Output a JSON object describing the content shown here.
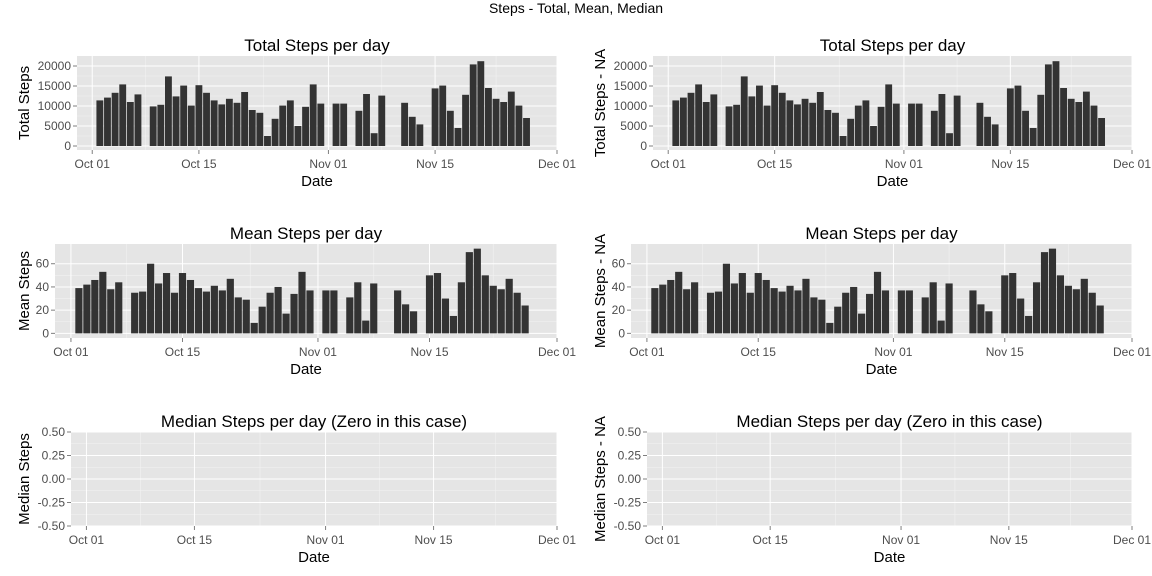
{
  "figure_title": "Steps - Total, Mean, Median",
  "chart_data": [
    {
      "type": "bar",
      "title": "Total Steps per day",
      "xlabel": "Date",
      "ylabel": "Total Steps",
      "ylim": [
        -1000,
        22500
      ],
      "yticks": [
        0,
        5000,
        10000,
        15000,
        20000
      ],
      "ytick_labels": [
        "0",
        "5000",
        "10000",
        "15000",
        "20000"
      ],
      "xlim": [
        "2012-09-29",
        "2012-12-01"
      ],
      "xticks": [
        "2012-10-01",
        "2012-10-15",
        "2012-11-01",
        "2012-11-15",
        "2012-12-01"
      ],
      "xtick_labels": [
        "Oct 01",
        "Oct 15",
        "Nov 01",
        "Nov 15",
        "Dec 01"
      ],
      "grid": true,
      "x": [
        "2012-10-02",
        "2012-10-03",
        "2012-10-04",
        "2012-10-05",
        "2012-10-06",
        "2012-10-07",
        "2012-10-09",
        "2012-10-10",
        "2012-10-11",
        "2012-10-12",
        "2012-10-13",
        "2012-10-14",
        "2012-10-15",
        "2012-10-16",
        "2012-10-17",
        "2012-10-18",
        "2012-10-19",
        "2012-10-20",
        "2012-10-21",
        "2012-10-22",
        "2012-10-23",
        "2012-10-24",
        "2012-10-25",
        "2012-10-26",
        "2012-10-27",
        "2012-10-28",
        "2012-10-29",
        "2012-10-30",
        "2012-10-31",
        "2012-11-02",
        "2012-11-03",
        "2012-11-05",
        "2012-11-06",
        "2012-11-07",
        "2012-11-08",
        "2012-11-11",
        "2012-11-12",
        "2012-11-13",
        "2012-11-15",
        "2012-11-16",
        "2012-11-17",
        "2012-11-18",
        "2012-11-19",
        "2012-11-20",
        "2012-11-21",
        "2012-11-22",
        "2012-11-23",
        "2012-11-24",
        "2012-11-25",
        "2012-11-26",
        "2012-11-27",
        "2012-11-28",
        "2012-11-29"
      ],
      "values": [
        11400,
        12100,
        13300,
        15400,
        11000,
        12900,
        9900,
        10300,
        17400,
        12400,
        15100,
        10100,
        15200,
        13300,
        11400,
        10400,
        11800,
        10800,
        13500,
        9000,
        8300,
        2500,
        6800,
        10100,
        11400,
        5000,
        9800,
        15400,
        10600,
        10600,
        10600,
        8800,
        13000,
        3200,
        12600,
        10800,
        7300,
        5400,
        14400,
        15100,
        8800,
        4500,
        12800,
        20400,
        21200,
        14500,
        11800,
        11000,
        13600,
        10100,
        7000,
        0,
        0
      ]
    },
    {
      "type": "bar",
      "title": "Total Steps per day",
      "xlabel": "Date",
      "ylabel": "Total Steps - NA",
      "ylim": [
        -1000,
        22500
      ],
      "yticks": [
        0,
        5000,
        10000,
        15000,
        20000
      ],
      "ytick_labels": [
        "0",
        "5000",
        "10000",
        "15000",
        "20000"
      ],
      "xlim": [
        "2012-09-29",
        "2012-12-01"
      ],
      "xticks": [
        "2012-10-01",
        "2012-10-15",
        "2012-11-01",
        "2012-11-15",
        "2012-12-01"
      ],
      "xtick_labels": [
        "Oct 01",
        "Oct 15",
        "Nov 01",
        "Nov 15",
        "Dec 01"
      ],
      "grid": true,
      "x": [
        "2012-10-02",
        "2012-10-03",
        "2012-10-04",
        "2012-10-05",
        "2012-10-06",
        "2012-10-07",
        "2012-10-09",
        "2012-10-10",
        "2012-10-11",
        "2012-10-12",
        "2012-10-13",
        "2012-10-14",
        "2012-10-15",
        "2012-10-16",
        "2012-10-17",
        "2012-10-18",
        "2012-10-19",
        "2012-10-20",
        "2012-10-21",
        "2012-10-22",
        "2012-10-23",
        "2012-10-24",
        "2012-10-25",
        "2012-10-26",
        "2012-10-27",
        "2012-10-28",
        "2012-10-29",
        "2012-10-30",
        "2012-10-31",
        "2012-11-02",
        "2012-11-03",
        "2012-11-05",
        "2012-11-06",
        "2012-11-07",
        "2012-11-08",
        "2012-11-11",
        "2012-11-12",
        "2012-11-13",
        "2012-11-15",
        "2012-11-16",
        "2012-11-17",
        "2012-11-18",
        "2012-11-19",
        "2012-11-20",
        "2012-11-21",
        "2012-11-22",
        "2012-11-23",
        "2012-11-24",
        "2012-11-25",
        "2012-11-26",
        "2012-11-27",
        "2012-11-28",
        "2012-11-29"
      ],
      "values": [
        11400,
        12100,
        13300,
        15400,
        11000,
        12900,
        9900,
        10300,
        17400,
        12400,
        15100,
        10100,
        15200,
        13300,
        11400,
        10400,
        11800,
        10800,
        13500,
        9000,
        8300,
        2500,
        6800,
        10100,
        11400,
        5000,
        9800,
        15400,
        10600,
        10600,
        10600,
        8800,
        13000,
        3200,
        12600,
        10800,
        7300,
        5400,
        14400,
        15100,
        8800,
        4500,
        12800,
        20400,
        21200,
        14500,
        11800,
        11000,
        13600,
        10100,
        7000,
        0,
        0
      ]
    },
    {
      "type": "bar",
      "title": "Mean Steps per day",
      "xlabel": "Date",
      "ylabel": "Mean Steps",
      "ylim": [
        -4,
        77
      ],
      "yticks": [
        0,
        20,
        40,
        60
      ],
      "ytick_labels": [
        "0",
        "20",
        "40",
        "60"
      ],
      "xlim": [
        "2012-09-29",
        "2012-12-01"
      ],
      "xticks": [
        "2012-10-01",
        "2012-10-15",
        "2012-11-01",
        "2012-11-15",
        "2012-12-01"
      ],
      "xtick_labels": [
        "Oct 01",
        "Oct 15",
        "Nov 01",
        "Nov 15",
        "Dec 01"
      ],
      "grid": true,
      "x": [
        "2012-10-02",
        "2012-10-03",
        "2012-10-04",
        "2012-10-05",
        "2012-10-06",
        "2012-10-07",
        "2012-10-09",
        "2012-10-10",
        "2012-10-11",
        "2012-10-12",
        "2012-10-13",
        "2012-10-14",
        "2012-10-15",
        "2012-10-16",
        "2012-10-17",
        "2012-10-18",
        "2012-10-19",
        "2012-10-20",
        "2012-10-21",
        "2012-10-22",
        "2012-10-23",
        "2012-10-24",
        "2012-10-25",
        "2012-10-26",
        "2012-10-27",
        "2012-10-28",
        "2012-10-29",
        "2012-10-30",
        "2012-10-31",
        "2012-11-02",
        "2012-11-03",
        "2012-11-05",
        "2012-11-06",
        "2012-11-07",
        "2012-11-08",
        "2012-11-11",
        "2012-11-12",
        "2012-11-13",
        "2012-11-15",
        "2012-11-16",
        "2012-11-17",
        "2012-11-18",
        "2012-11-19",
        "2012-11-20",
        "2012-11-21",
        "2012-11-22",
        "2012-11-23",
        "2012-11-24",
        "2012-11-25",
        "2012-11-26",
        "2012-11-27",
        "2012-11-28",
        "2012-11-29"
      ],
      "values": [
        39,
        42,
        46,
        53,
        38,
        44,
        35,
        36,
        60,
        43,
        52,
        35,
        52,
        46,
        39,
        36,
        41,
        37,
        47,
        31,
        29,
        9,
        23,
        35,
        40,
        17,
        34,
        53,
        37,
        37,
        37,
        31,
        44,
        11,
        43,
        37,
        25,
        19,
        50,
        52,
        30,
        15,
        44,
        70,
        73,
        50,
        41,
        38,
        47,
        35,
        24,
        0,
        0
      ]
    },
    {
      "type": "bar",
      "title": "Mean Steps per day",
      "xlabel": "Date",
      "ylabel": "Mean Steps - NA",
      "ylim": [
        -4,
        77
      ],
      "yticks": [
        0,
        20,
        40,
        60
      ],
      "ytick_labels": [
        "0",
        "20",
        "40",
        "60"
      ],
      "xlim": [
        "2012-09-29",
        "2012-12-01"
      ],
      "xticks": [
        "2012-10-01",
        "2012-10-15",
        "2012-11-01",
        "2012-11-15",
        "2012-12-01"
      ],
      "xtick_labels": [
        "Oct 01",
        "Oct 15",
        "Nov 01",
        "Nov 15",
        "Dec 01"
      ],
      "grid": true,
      "x": [
        "2012-10-02",
        "2012-10-03",
        "2012-10-04",
        "2012-10-05",
        "2012-10-06",
        "2012-10-07",
        "2012-10-09",
        "2012-10-10",
        "2012-10-11",
        "2012-10-12",
        "2012-10-13",
        "2012-10-14",
        "2012-10-15",
        "2012-10-16",
        "2012-10-17",
        "2012-10-18",
        "2012-10-19",
        "2012-10-20",
        "2012-10-21",
        "2012-10-22",
        "2012-10-23",
        "2012-10-24",
        "2012-10-25",
        "2012-10-26",
        "2012-10-27",
        "2012-10-28",
        "2012-10-29",
        "2012-10-30",
        "2012-10-31",
        "2012-11-02",
        "2012-11-03",
        "2012-11-05",
        "2012-11-06",
        "2012-11-07",
        "2012-11-08",
        "2012-11-11",
        "2012-11-12",
        "2012-11-13",
        "2012-11-15",
        "2012-11-16",
        "2012-11-17",
        "2012-11-18",
        "2012-11-19",
        "2012-11-20",
        "2012-11-21",
        "2012-11-22",
        "2012-11-23",
        "2012-11-24",
        "2012-11-25",
        "2012-11-26",
        "2012-11-27",
        "2012-11-28",
        "2012-11-29"
      ],
      "values": [
        39,
        42,
        46,
        53,
        38,
        44,
        35,
        36,
        60,
        43,
        52,
        35,
        52,
        46,
        39,
        36,
        41,
        37,
        47,
        31,
        29,
        9,
        23,
        35,
        40,
        17,
        34,
        53,
        37,
        37,
        37,
        31,
        44,
        11,
        43,
        37,
        25,
        19,
        50,
        52,
        30,
        15,
        44,
        70,
        73,
        50,
        41,
        38,
        47,
        35,
        24,
        0,
        0
      ]
    },
    {
      "type": "bar",
      "title": "Median Steps per day (Zero in this case)",
      "xlabel": "Date",
      "ylabel": "Median Steps",
      "ylim": [
        -0.5,
        0.5
      ],
      "yticks": [
        -0.5,
        -0.25,
        0,
        0.25,
        0.5
      ],
      "ytick_labels": [
        "-0.50",
        "-0.25",
        "0.00",
        "0.25",
        "0.50"
      ],
      "xlim": [
        "2012-09-29",
        "2012-12-01"
      ],
      "xticks": [
        "2012-10-01",
        "2012-10-15",
        "2012-11-01",
        "2012-11-15",
        "2012-12-01"
      ],
      "xtick_labels": [
        "Oct 01",
        "Oct 15",
        "Nov 01",
        "Nov 15",
        "Dec 01"
      ],
      "grid": true,
      "x": [],
      "values": []
    },
    {
      "type": "bar",
      "title": "Median Steps per day (Zero in this case)",
      "xlabel": "Date",
      "ylabel": "Median Steps - NA",
      "ylim": [
        -0.5,
        0.5
      ],
      "yticks": [
        -0.5,
        -0.25,
        0,
        0.25,
        0.5
      ],
      "ytick_labels": [
        "-0.50",
        "-0.25",
        "0.00",
        "0.25",
        "0.50"
      ],
      "xlim": [
        "2012-09-29",
        "2012-12-01"
      ],
      "xticks": [
        "2012-10-01",
        "2012-10-15",
        "2012-11-01",
        "2012-11-15",
        "2012-12-01"
      ],
      "xtick_labels": [
        "Oct 01",
        "Oct 15",
        "Nov 01",
        "Nov 15",
        "Dec 01"
      ],
      "grid": true,
      "x": [],
      "values": []
    }
  ],
  "colors": {
    "panel_bg": "#e5e5e5",
    "grid_major": "#ffffff",
    "grid_minor": "#f2f2f2",
    "bar_fill": "#333333",
    "tick_text": "#4d4d4d",
    "text": "#000000"
  }
}
